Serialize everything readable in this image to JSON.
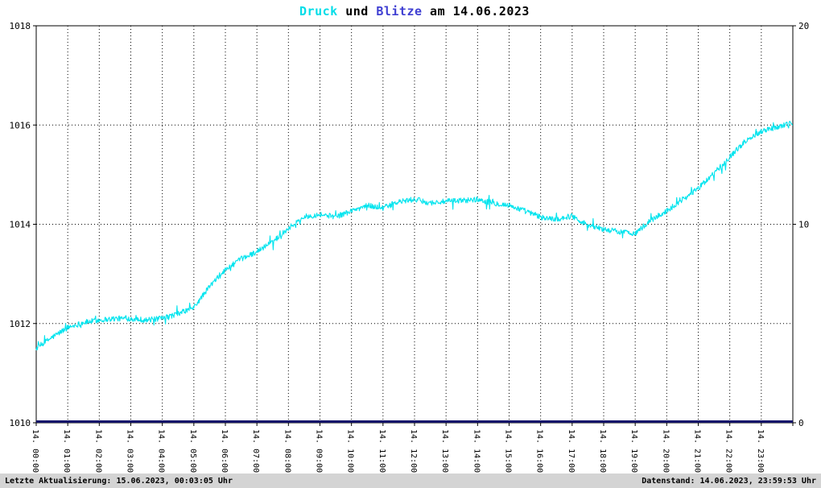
{
  "title": {
    "segments": [
      {
        "text": "Druck",
        "color": "#00dde8"
      },
      {
        "text": " und ",
        "color": "#000000"
      },
      {
        "text": "Blitze",
        "color": "#3f3fd2"
      },
      {
        "text": " am 14.06.2023",
        "color": "#000000"
      }
    ]
  },
  "footer": {
    "left": "Letzte Aktualisierung: 15.06.2023, 00:03:05 Uhr",
    "right": "Datenstand: 14.06.2023, 23:59:53 Uhr",
    "background": "#d4d4d4"
  },
  "chart_data": {
    "type": "line",
    "title": "Druck und Blitze am 14.06.2023",
    "x_axis": {
      "hours": 24,
      "labels": [
        "14. 00:00",
        "14. 01:00",
        "14. 02:00",
        "14. 03:00",
        "14. 04:00",
        "14. 05:00",
        "14. 06:00",
        "14. 07:00",
        "14. 08:00",
        "14. 09:00",
        "14. 10:00",
        "14. 11:00",
        "14. 12:00",
        "14. 13:00",
        "14. 14:00",
        "14. 15:00",
        "14. 16:00",
        "14. 17:00",
        "14. 18:00",
        "14. 19:00",
        "14. 20:00",
        "14. 21:00",
        "14. 22:00",
        "14. 23:00"
      ]
    },
    "y_left": {
      "min": 1010,
      "max": 1018,
      "ticks": [
        1010,
        1012,
        1014,
        1016,
        1018
      ]
    },
    "y_right": {
      "min": 0,
      "max": 20,
      "ticks": [
        0,
        10,
        20
      ]
    },
    "grid": {
      "horizontal_values": [
        1012,
        1014,
        1016
      ],
      "vertical_step_hours": 1
    },
    "series": [
      {
        "name": "Druck",
        "axis": "left",
        "color": "#00e4ee",
        "anchor_hours": [
          0,
          0.5,
          1,
          1.5,
          2,
          2.5,
          3,
          3.5,
          4,
          4.5,
          5,
          5.5,
          6,
          6.5,
          7,
          7.5,
          8,
          8.5,
          9,
          9.5,
          10,
          10.5,
          11,
          11.5,
          12,
          12.5,
          13,
          13.5,
          14,
          14.5,
          15,
          15.5,
          16,
          16.5,
          17,
          17.5,
          18,
          18.5,
          19,
          19.5,
          20,
          20.5,
          21,
          21.5,
          22,
          22.5,
          23,
          23.5,
          24
        ],
        "anchor_values": [
          1011.5,
          1011.72,
          1011.92,
          1012.02,
          1012.07,
          1012.1,
          1012.1,
          1012.07,
          1012.1,
          1012.2,
          1012.32,
          1012.75,
          1013.08,
          1013.3,
          1013.45,
          1013.65,
          1013.92,
          1014.15,
          1014.2,
          1014.15,
          1014.27,
          1014.38,
          1014.33,
          1014.45,
          1014.5,
          1014.43,
          1014.46,
          1014.48,
          1014.5,
          1014.43,
          1014.38,
          1014.27,
          1014.14,
          1014.1,
          1014.17,
          1013.98,
          1013.9,
          1013.85,
          1013.82,
          1014.08,
          1014.27,
          1014.5,
          1014.72,
          1015.03,
          1015.36,
          1015.68,
          1015.88,
          1015.96,
          1016.05
        ],
        "noise_amplitude": 0.055,
        "spike_amplitude": 0.16,
        "spike_chance": 0.05,
        "samples_per_hour": 60,
        "seed": 12345
      },
      {
        "name": "Blitze",
        "axis": "right",
        "color": "#15156a",
        "constant_value": 0,
        "line_width": 3
      }
    ]
  }
}
